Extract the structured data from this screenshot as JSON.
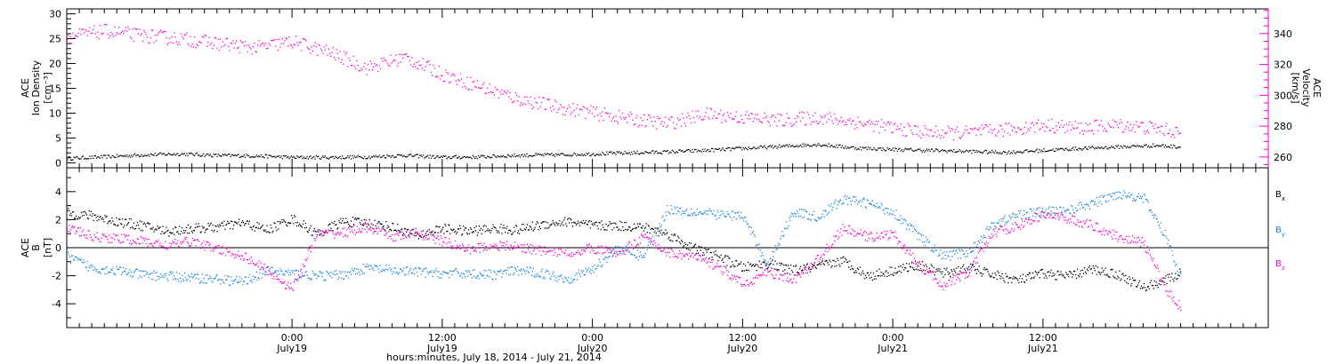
{
  "chart_data": [
    {
      "type": "scatter",
      "panel": "top",
      "ylabel_left": [
        "ACE",
        "Ion Density",
        "[cm⁻³]"
      ],
      "ylabel_right": [
        "ACE",
        "Velocity",
        "[km/s]"
      ],
      "ylim_left": [
        -1,
        31
      ],
      "yticks_left": [
        "0",
        "5",
        "10",
        "15",
        "20",
        "25",
        "30"
      ],
      "ylim_right": [
        253,
        356
      ],
      "yticks_right": [
        "260",
        "280",
        "300",
        "320",
        "340"
      ],
      "series": [
        {
          "color": "#000000",
          "axis": "left",
          "x": [
            0,
            3,
            6,
            9,
            12,
            15,
            18,
            21,
            24,
            27,
            30,
            33,
            36,
            39,
            42,
            45,
            48,
            51,
            54,
            57,
            60,
            63,
            66,
            69,
            72,
            75,
            78,
            81,
            84,
            87,
            89
          ],
          "y": [
            1.0,
            1.3,
            1.7,
            1.9,
            1.6,
            1.5,
            1.2,
            1.2,
            1.3,
            1.6,
            1.2,
            1.3,
            1.6,
            1.7,
            1.9,
            2.1,
            2.3,
            2.6,
            3.0,
            3.4,
            3.8,
            3.1,
            2.8,
            2.6,
            2.4,
            2.2,
            2.6,
            3.0,
            3.3,
            3.6,
            3.3
          ]
        },
        {
          "color": "#ff00cc",
          "axis": "right",
          "x": [
            0,
            3,
            6,
            9,
            12,
            15,
            18,
            21,
            24,
            27,
            30,
            33,
            36,
            39,
            42,
            45,
            48,
            51,
            54,
            57,
            60,
            63,
            66,
            69,
            72,
            75,
            78,
            81,
            84,
            87,
            89
          ],
          "y": [
            338,
            342,
            339,
            337,
            334,
            331,
            335,
            328,
            318,
            325,
            314,
            306,
            298,
            293,
            289,
            285,
            282,
            288,
            286,
            284,
            286,
            283,
            279,
            276,
            276,
            278,
            281,
            279,
            281,
            279,
            276
          ]
        }
      ]
    },
    {
      "type": "scatter",
      "panel": "bottom",
      "ylabel": [
        "ACE",
        "B",
        "[nT]"
      ],
      "ylim": [
        -5.7,
        5.7
      ],
      "yticks": [
        "-4",
        "-2",
        "0",
        "2",
        "4"
      ],
      "legend": [
        "Bx",
        "By",
        "Bz"
      ],
      "series": [
        {
          "name": "Bx",
          "color": "#000000",
          "x": [
            0,
            2,
            4,
            6,
            8,
            10,
            12,
            14,
            16,
            18,
            20,
            22,
            24,
            26,
            28,
            30,
            32,
            34,
            36,
            38,
            40,
            42,
            44,
            46,
            48,
            50,
            52,
            54,
            56,
            58,
            60,
            62,
            64,
            66,
            68,
            70,
            72,
            74,
            76,
            78,
            80,
            82,
            84,
            86,
            88,
            89
          ],
          "y": [
            2.5,
            2.3,
            1.9,
            1.6,
            1.2,
            1.4,
            1.5,
            1.8,
            1.3,
            2.1,
            1.0,
            1.9,
            1.8,
            1.5,
            0.9,
            1.4,
            1.2,
            1.4,
            1.3,
            1.7,
            1.9,
            1.6,
            1.6,
            1.5,
            1.0,
            0.0,
            -0.6,
            -1.4,
            -1.1,
            -1.6,
            -1.3,
            -0.9,
            -2.0,
            -1.6,
            -1.2,
            -1.8,
            -1.4,
            -1.9,
            -2.3,
            -1.8,
            -2.0,
            -1.5,
            -1.9,
            -2.8,
            -2.2,
            -1.8
          ]
        },
        {
          "name": "By",
          "color": "#1a88dd",
          "x": [
            0,
            2,
            4,
            6,
            8,
            10,
            12,
            14,
            16,
            18,
            20,
            22,
            24,
            26,
            28,
            30,
            32,
            34,
            36,
            38,
            40,
            42,
            44,
            46,
            48,
            50,
            52,
            54,
            56,
            58,
            60,
            62,
            64,
            66,
            68,
            70,
            72,
            74,
            76,
            78,
            80,
            82,
            84,
            86,
            88,
            89
          ],
          "y": [
            -0.6,
            -1.4,
            -1.6,
            -1.9,
            -2.0,
            -2.1,
            -2.2,
            -2.4,
            -1.6,
            -1.8,
            -2.0,
            -1.9,
            -1.4,
            -1.6,
            -1.7,
            -1.8,
            -1.8,
            -1.9,
            -1.6,
            -1.8,
            -2.2,
            -1.5,
            0.0,
            -0.6,
            2.8,
            2.6,
            2.4,
            2.3,
            -1.2,
            2.6,
            2.2,
            3.5,
            3.2,
            2.6,
            0.9,
            -0.6,
            -0.3,
            1.7,
            2.4,
            2.6,
            2.7,
            3.2,
            3.9,
            3.6,
            0.5,
            -2.2
          ]
        },
        {
          "name": "Bz",
          "color": "#ff00cc",
          "x": [
            0,
            2,
            4,
            6,
            8,
            10,
            12,
            14,
            16,
            18,
            20,
            22,
            24,
            26,
            28,
            30,
            32,
            34,
            36,
            38,
            40,
            42,
            44,
            46,
            48,
            50,
            52,
            54,
            56,
            58,
            60,
            62,
            64,
            66,
            68,
            70,
            72,
            74,
            76,
            78,
            80,
            82,
            84,
            86,
            88,
            89
          ],
          "y": [
            1.5,
            0.8,
            0.7,
            0.5,
            0.2,
            0.5,
            -0.1,
            -0.5,
            -1.6,
            -2.9,
            1.0,
            1.1,
            1.5,
            0.8,
            1.1,
            0.5,
            -0.1,
            0.2,
            0.1,
            -0.2,
            -0.3,
            0.0,
            -0.4,
            0.8,
            -0.3,
            -0.6,
            -1.3,
            -2.6,
            -1.7,
            -2.3,
            -0.8,
            1.4,
            0.8,
            1.0,
            -1.2,
            -2.6,
            -1.8,
            1.1,
            1.6,
            2.4,
            2.1,
            1.6,
            0.8,
            0.4,
            -3.2,
            -4.2
          ]
        }
      ]
    }
  ],
  "x_axis": {
    "range_hours": [
      0,
      96
    ],
    "ticks": [
      {
        "hour": 18,
        "time": "0:00",
        "date": "July19"
      },
      {
        "hour": 30,
        "time": "12:00",
        "date": "July19"
      },
      {
        "hour": 42,
        "time": "0:00",
        "date": "July20"
      },
      {
        "hour": 54,
        "time": "12:00",
        "date": "July20"
      },
      {
        "hour": 66,
        "time": "0:00",
        "date": "July21"
      },
      {
        "hour": 78,
        "time": "12:00",
        "date": "July21"
      }
    ],
    "label": "hours:minutes, July 18, 2014 - July 21, 2014"
  },
  "colors": {
    "black": "#000000",
    "magenta": "#ff00cc",
    "blue": "#1a88dd"
  }
}
